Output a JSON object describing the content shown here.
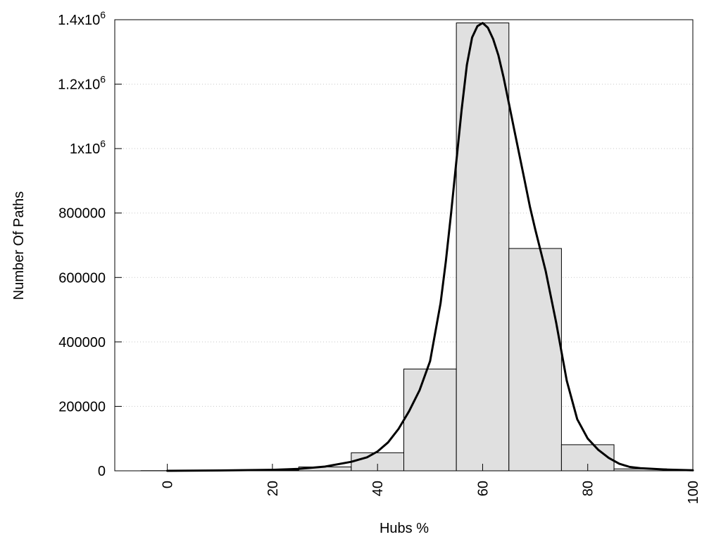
{
  "chart_data": {
    "type": "bar",
    "xlabel": "Hubs %",
    "ylabel": "Number Of Paths",
    "xlim": [
      -10,
      100
    ],
    "ylim": [
      0,
      1400000
    ],
    "grid": "horizontal dotted",
    "x_ticks": [
      0,
      20,
      40,
      60,
      80,
      100
    ],
    "y_ticks": [
      {
        "value": 0,
        "label": "0"
      },
      {
        "value": 200000,
        "label": "200000"
      },
      {
        "value": 400000,
        "label": "400000"
      },
      {
        "value": 600000,
        "label": "600000"
      },
      {
        "value": 800000,
        "label": "800000"
      },
      {
        "value": 1000000,
        "label": "1x10",
        "exp": "6"
      },
      {
        "value": 1200000,
        "label": "1.2x10",
        "exp": "6"
      },
      {
        "value": 1400000,
        "label": "1.4x10",
        "exp": "6"
      }
    ],
    "bars": [
      {
        "x": 0,
        "value": 500
      },
      {
        "x": 10,
        "value": 1000
      },
      {
        "x": 20,
        "value": 2000
      },
      {
        "x": 30,
        "value": 12000
      },
      {
        "x": 40,
        "value": 56000
      },
      {
        "x": 50,
        "value": 316000
      },
      {
        "x": 60,
        "value": 1390000
      },
      {
        "x": 70,
        "value": 690000
      },
      {
        "x": 80,
        "value": 81000
      },
      {
        "x": 90,
        "value": 6000
      }
    ],
    "bar_width": 10,
    "bar_color": "#e0e0e0",
    "curve": {
      "x": [
        0,
        10,
        20,
        25,
        30,
        35,
        38,
        40,
        42,
        44,
        46,
        48,
        50,
        52,
        53,
        54,
        55,
        56,
        57,
        58,
        59,
        60,
        61,
        62,
        63,
        64,
        65,
        66,
        67,
        68,
        69,
        70,
        72,
        74,
        76,
        78,
        80,
        82,
        84,
        86,
        88,
        90,
        95,
        100
      ],
      "y": [
        0,
        1000,
        3000,
        6000,
        13000,
        28000,
        42000,
        60000,
        88000,
        130000,
        185000,
        250000,
        340000,
        520000,
        650000,
        800000,
        960000,
        1120000,
        1260000,
        1345000,
        1380000,
        1390000,
        1375000,
        1340000,
        1290000,
        1220000,
        1140000,
        1060000,
        980000,
        900000,
        820000,
        750000,
        620000,
        460000,
        280000,
        160000,
        100000,
        65000,
        40000,
        22000,
        12000,
        8000,
        4000,
        1500
      ],
      "color": "#000000"
    }
  }
}
